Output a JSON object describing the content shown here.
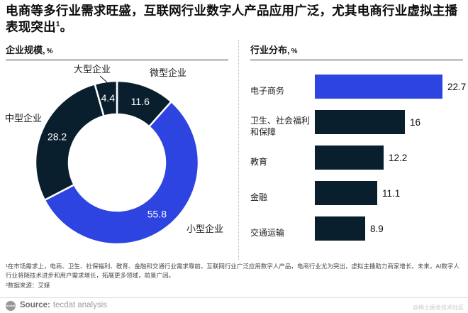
{
  "title": {
    "text": "电商等多行业需求旺盛，互联网行业数字人产品应用广泛，尤其电商行业虚拟主播表现突出",
    "sup": "1",
    "tail": "。"
  },
  "left_chart": {
    "header": "企业规模,",
    "unit": "%"
  },
  "right_chart": {
    "header": "行业分布,",
    "unit": "%"
  },
  "chart_data": [
    {
      "type": "pie",
      "subtype": "donut",
      "title": "企业规模, %",
      "legend_position": "outside-labels",
      "order": "clockwise-from-top",
      "segments": [
        {
          "label": "微型企业",
          "value": 11.6,
          "color": "#0a1f2e"
        },
        {
          "label": "小型企业",
          "value": 55.8,
          "color": "#2e44e1"
        },
        {
          "label": "中型企业",
          "value": 28.2,
          "color": "#0a1f2e"
        },
        {
          "label": "大型企业",
          "value": 4.4,
          "color": "#0a1f2e"
        }
      ]
    },
    {
      "type": "bar",
      "orientation": "horizontal",
      "title": "行业分布, %",
      "categories": [
        "电子商务",
        "卫生、社会福利和保障",
        "教育",
        "金融",
        "交通运输"
      ],
      "values": [
        22.7,
        16,
        12.2,
        11.1,
        8.9
      ],
      "bar_colors": [
        "#2e44e1",
        "#0a1f2e",
        "#0a1f2e",
        "#0a1f2e",
        "#0a1f2e"
      ],
      "xlim": [
        0,
        24
      ],
      "grid": false,
      "value_labels": "end-of-bar"
    }
  ],
  "footnotes": [
    "¹在市场需求上，电商、卫生、社保福利、教育、金融和交通行业需求靠前。互联网行业广泛应用数字人产品，电商行业尤为突出，虚拟主播助力商家增长。未来，AI数字人行业将随技术进步和用户需求增长，拓展更多领域，前景广阔。",
    "²数据来源：艾媒"
  ],
  "source": {
    "logo": "tecdat",
    "label": "Source:",
    "text": "tecdat analysis"
  },
  "watermark": "@稀土掘金技术社区",
  "colors": {
    "dark": "#0a1f2e",
    "blue": "#2e44e1",
    "gap": "#ffffff"
  }
}
